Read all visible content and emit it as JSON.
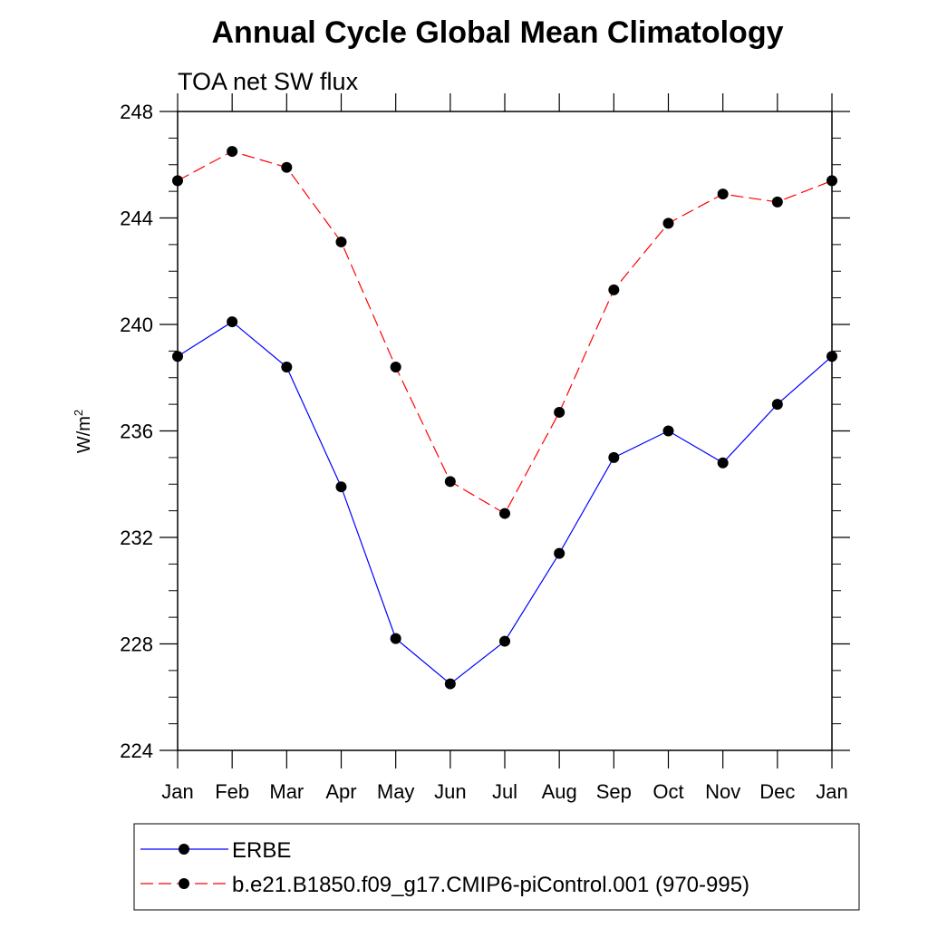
{
  "chart_data": {
    "type": "line",
    "title": "Annual Cycle Global Mean Climatology",
    "subtitle": "TOA net SW flux",
    "ylabel": "W/m",
    "ylabel_superscript": "2",
    "categories": [
      "Jan",
      "Feb",
      "Mar",
      "Apr",
      "May",
      "Jun",
      "Jul",
      "Aug",
      "Sep",
      "Oct",
      "Nov",
      "Dec",
      "Jan"
    ],
    "ylim": [
      224,
      248
    ],
    "yticks": [
      224,
      228,
      232,
      236,
      240,
      244,
      248
    ],
    "grid": false,
    "legend_position": "bottom",
    "series": [
      {
        "name": "ERBE",
        "color": "#0000ff",
        "line_style": "solid",
        "values": [
          238.8,
          240.1,
          238.4,
          233.9,
          228.2,
          226.5,
          228.1,
          231.4,
          235.0,
          236.0,
          234.8,
          237.0,
          238.8
        ]
      },
      {
        "name": "b.e21.B1850.f09_g17.CMIP6-piControl.001 (970-995)",
        "color": "#ff0000",
        "line_style": "dashed",
        "values": [
          245.4,
          246.5,
          245.9,
          243.1,
          238.4,
          234.1,
          232.9,
          236.7,
          241.3,
          243.8,
          244.9,
          244.6,
          245.4
        ]
      }
    ]
  }
}
